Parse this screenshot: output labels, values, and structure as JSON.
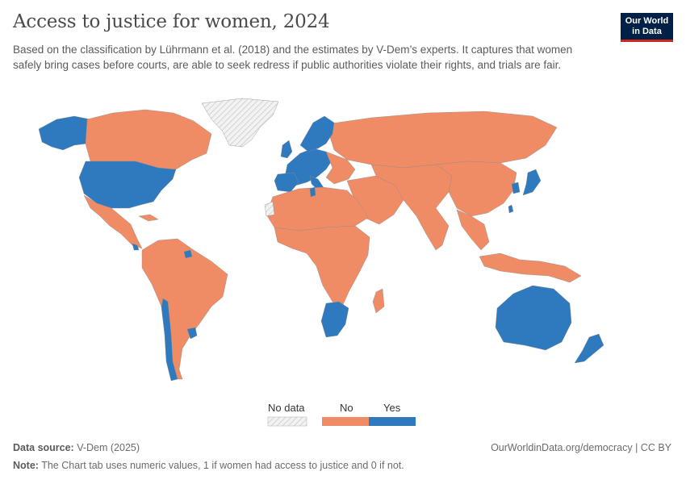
{
  "header": {
    "title": "Access to justice for women, 2024",
    "subtitle": "Based on the classification by Lührmann et al. (2018) and the estimates by V-Dem’s experts. It captures that women safely bring cases before courts, are able to seek redress if public authorities violate their rights, and trials are fair.",
    "logo_line1": "Our World",
    "logo_line2": "in Data"
  },
  "colors": {
    "no": "#ef8c65",
    "yes": "#2f7abf",
    "no_data": "#e6e6e6",
    "border": "#8c8c8c"
  },
  "legend": {
    "no_data_label": "No data",
    "no_label": "No",
    "yes_label": "Yes"
  },
  "map_data": {
    "type": "choropleth",
    "metric": "women have access to justice",
    "yes": [
      "United States",
      "Canada (Alaska side region)",
      "Costa Rica",
      "Suriname",
      "Chile",
      "Uruguay",
      "Portugal",
      "Spain",
      "France",
      "Germany",
      "Netherlands",
      "Belgium",
      "Ireland",
      "United Kingdom",
      "Norway",
      "Sweden",
      "Finland",
      "Denmark",
      "Estonia",
      "Italy",
      "Switzerland",
      "Austria",
      "Czechia",
      "Slovenia",
      "Croatia",
      "Greece",
      "Tunisia",
      "Botswana",
      "South Africa",
      "Taiwan",
      "Japan",
      "South Korea",
      "Australia",
      "New Zealand"
    ],
    "no": [
      "Canada",
      "Mexico",
      "Brazil",
      "Argentina",
      "Russia",
      "China",
      "India",
      "Africa (most)",
      "Middle East",
      "Southeast Asia",
      "Indonesia"
    ],
    "no_data": [
      "Greenland",
      "Western Sahara"
    ]
  },
  "footer": {
    "source_label": "Data source:",
    "source": "V-Dem (2025)",
    "url": "OurWorldinData.org/democracy | CC BY",
    "note_label": "Note:",
    "note": "The Chart tab uses numeric values, 1 if women had access to justice and 0 if not."
  }
}
